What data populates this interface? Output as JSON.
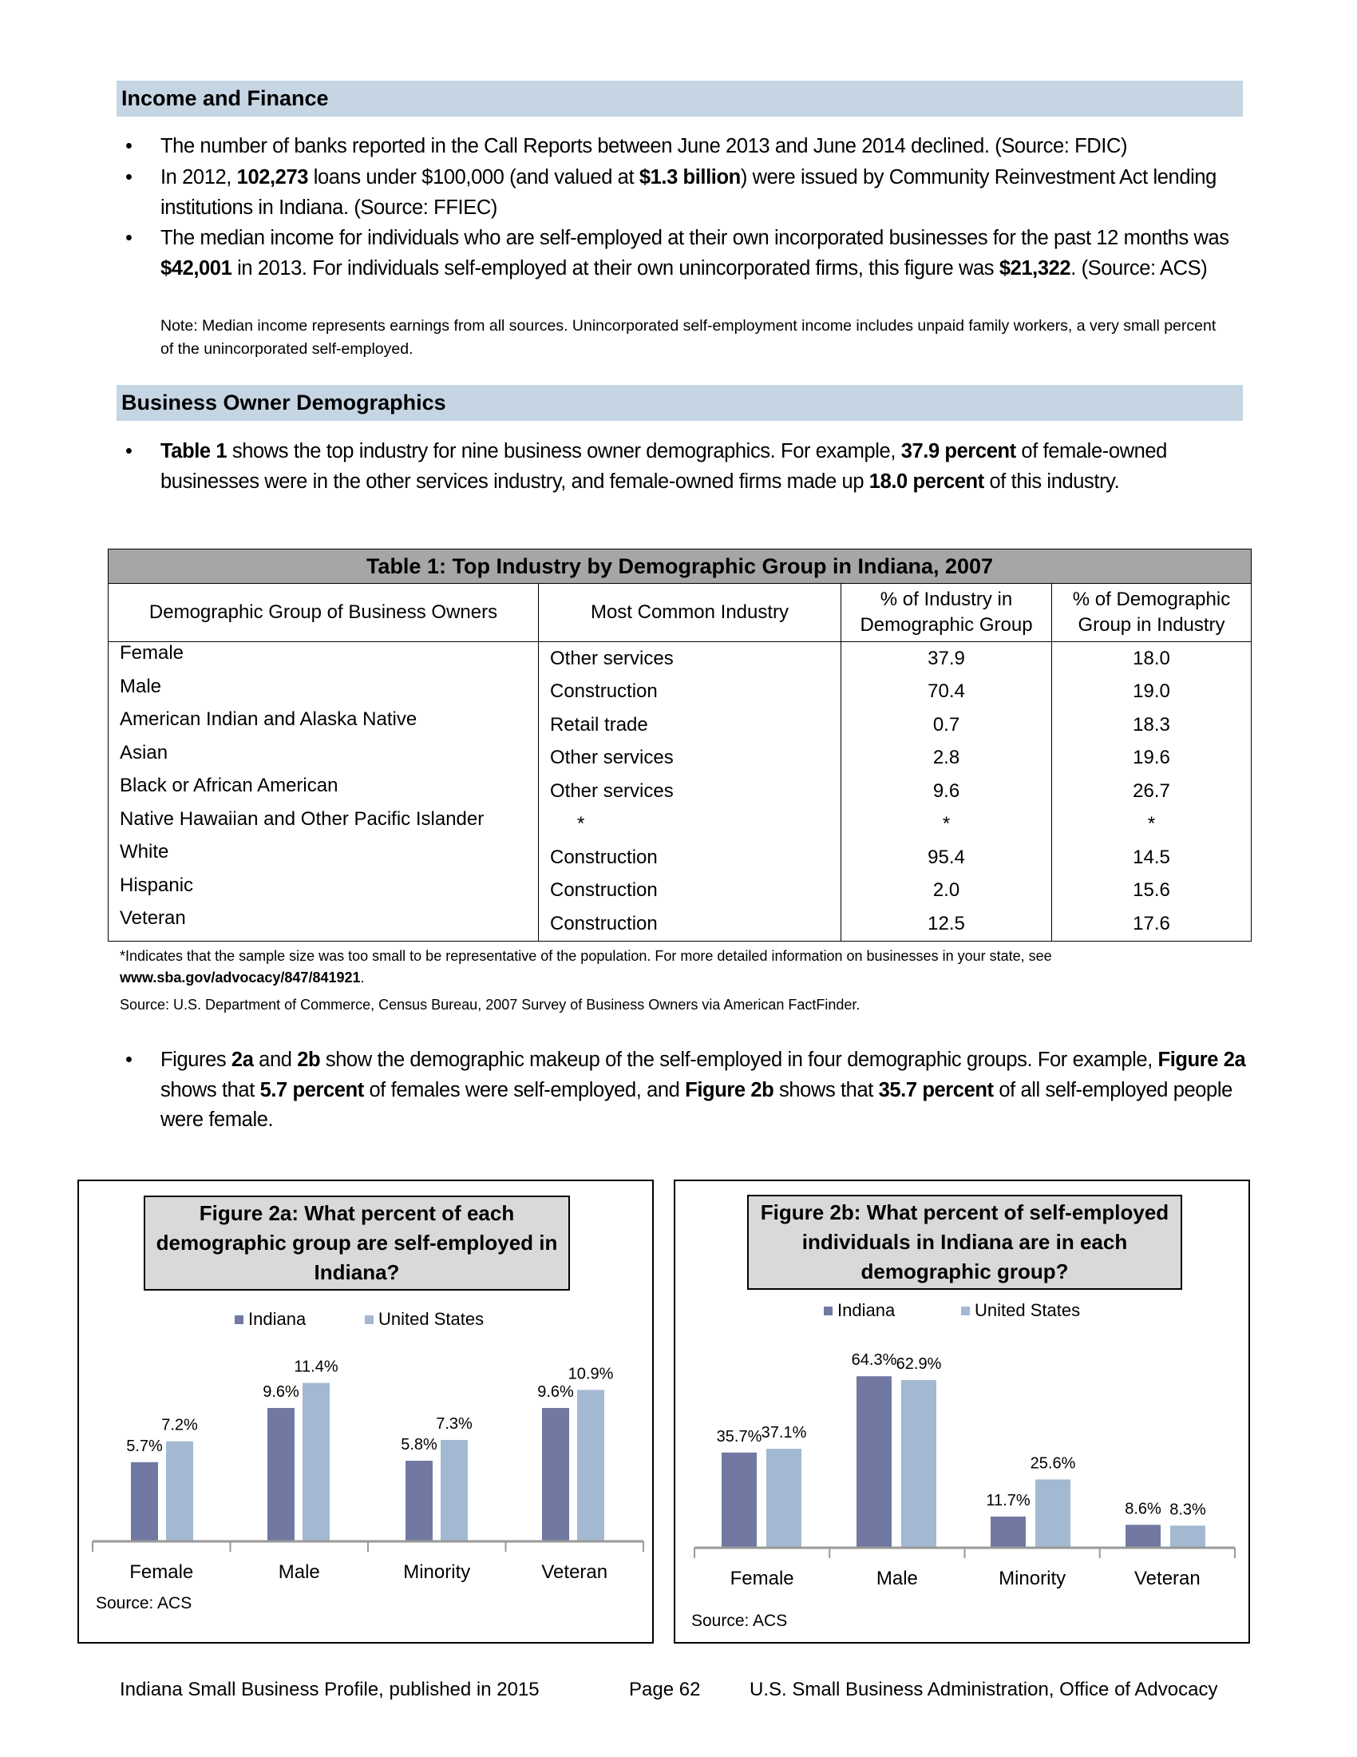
{
  "income": {
    "heading": "Income and Finance",
    "bullets": [
      [
        "The number of banks reported in the Call Reports between June 2013 and June 2014 declined. (Source: FDIC)"
      ],
      [
        "In 2012, ",
        "102,273",
        " loans under $100,000 (and valued at ",
        "$1.3 billion",
        ") were issued by Community Reinvestment Act lending institutions in Indiana. (Source: FFIEC)"
      ],
      [
        "The median income for individuals who are self-employed at their own incorporated businesses for the past 12 months was ",
        "$42,001",
        " in 2013. For individuals self-employed at their own unincorporated firms, this figure was ",
        "$21,322",
        ".  (Source: ACS)"
      ]
    ],
    "note": "Note: Median income represents earnings from all sources. Unincorporated self-employment income includes unpaid family workers, a very small percent of the unincorporated self-employed."
  },
  "demographics": {
    "heading": "Business Owner Demographics",
    "bullet1": [
      "Table 1",
      " shows the top industry for nine business owner demographics. For example, ",
      "37.9 percent",
      " of female-owned businesses were in the other services industry, and female-owned firms made up ",
      "18.0 percent",
      " of this industry."
    ],
    "bullet2": [
      "Figures ",
      "2a",
      " and ",
      "2b",
      " show the demographic makeup of the self-employed in four demographic groups. For example, ",
      "Figure 2a",
      " shows that ",
      "5.7 percent",
      " of females were self-employed, and ",
      "Figure 2b",
      " shows that ",
      "35.7 percent",
      " of all self-employed people were female."
    ]
  },
  "table": {
    "title": "Table 1: Top Industry by Demographic Group in Indiana, 2007",
    "headers": [
      "Demographic Group of Business Owners",
      "Most Common Industry",
      "% of Industry in Demographic Group",
      "% of Demographic Group in Industry"
    ],
    "rows": [
      [
        "Female",
        "Other services",
        "37.9",
        "18.0"
      ],
      [
        "Male",
        "Construction",
        "70.4",
        "19.0"
      ],
      [
        "American Indian and Alaska Native",
        "Retail trade",
        "0.7",
        "18.3"
      ],
      [
        "Asian",
        "Other services",
        "2.8",
        "19.6"
      ],
      [
        "Black or African American",
        "Other services",
        "9.6",
        "26.7"
      ],
      [
        "Native Hawaiian and Other Pacific Islander",
        "*",
        "*",
        "*"
      ],
      [
        "White",
        "Construction",
        "95.4",
        "14.5"
      ],
      [
        "Hispanic",
        "Construction",
        "2.0",
        "15.6"
      ],
      [
        "Veteran",
        "Construction",
        "12.5",
        "17.6"
      ]
    ],
    "footnote1": "*Indicates that the sample size was too small to be representative of the population. For more detailed information on businesses in your state, see ",
    "footnote_link": "www.sba.gov/advocacy/847/841921",
    "footnote_end": ".",
    "source": "Source: U.S. Department of Commerce, Census Bureau, 2007 Survey of Business Owners via American FactFinder."
  },
  "colors": {
    "indiana": "#7179a2",
    "united_states": "#a3b9d1",
    "section_bg": "#c5d5e4"
  },
  "chart_data": [
    {
      "type": "bar",
      "title": "Figure 2a: What percent of each demographic group are self-employed in Indiana?",
      "categories": [
        "Female",
        "Male",
        "Minority",
        "Veteran"
      ],
      "series": [
        {
          "name": "Indiana",
          "values": [
            5.7,
            9.6,
            5.8,
            9.6
          ],
          "labels": [
            "5.7%",
            "9.6%",
            "5.8%",
            "9.6%"
          ]
        },
        {
          "name": "United States",
          "values": [
            7.2,
            11.4,
            7.3,
            10.9
          ],
          "labels": [
            "7.2%",
            "11.4%",
            "7.3%",
            "10.9%"
          ]
        }
      ],
      "legend": "top",
      "grid": false,
      "source": "Source: ACS"
    },
    {
      "type": "bar",
      "title": "Figure 2b: What percent of self-employed individuals in Indiana are in each demographic group?",
      "categories": [
        "Female",
        "Male",
        "Minority",
        "Veteran"
      ],
      "series": [
        {
          "name": "Indiana",
          "values": [
            35.7,
            64.3,
            11.7,
            8.6
          ],
          "labels": [
            "35.7%",
            "64.3%",
            "11.7%",
            "8.6%"
          ]
        },
        {
          "name": "United States",
          "values": [
            37.1,
            62.9,
            25.6,
            8.3
          ],
          "labels": [
            "37.1%",
            "62.9%",
            "25.6%",
            "8.3%"
          ]
        }
      ],
      "legend": "top",
      "grid": false,
      "source": "Source: ACS"
    }
  ],
  "footer": {
    "left": "Indiana Small Business Profile, published in 2015",
    "page": "Page 62",
    "right": "U.S. Small Business Administration, Office of Advocacy"
  }
}
